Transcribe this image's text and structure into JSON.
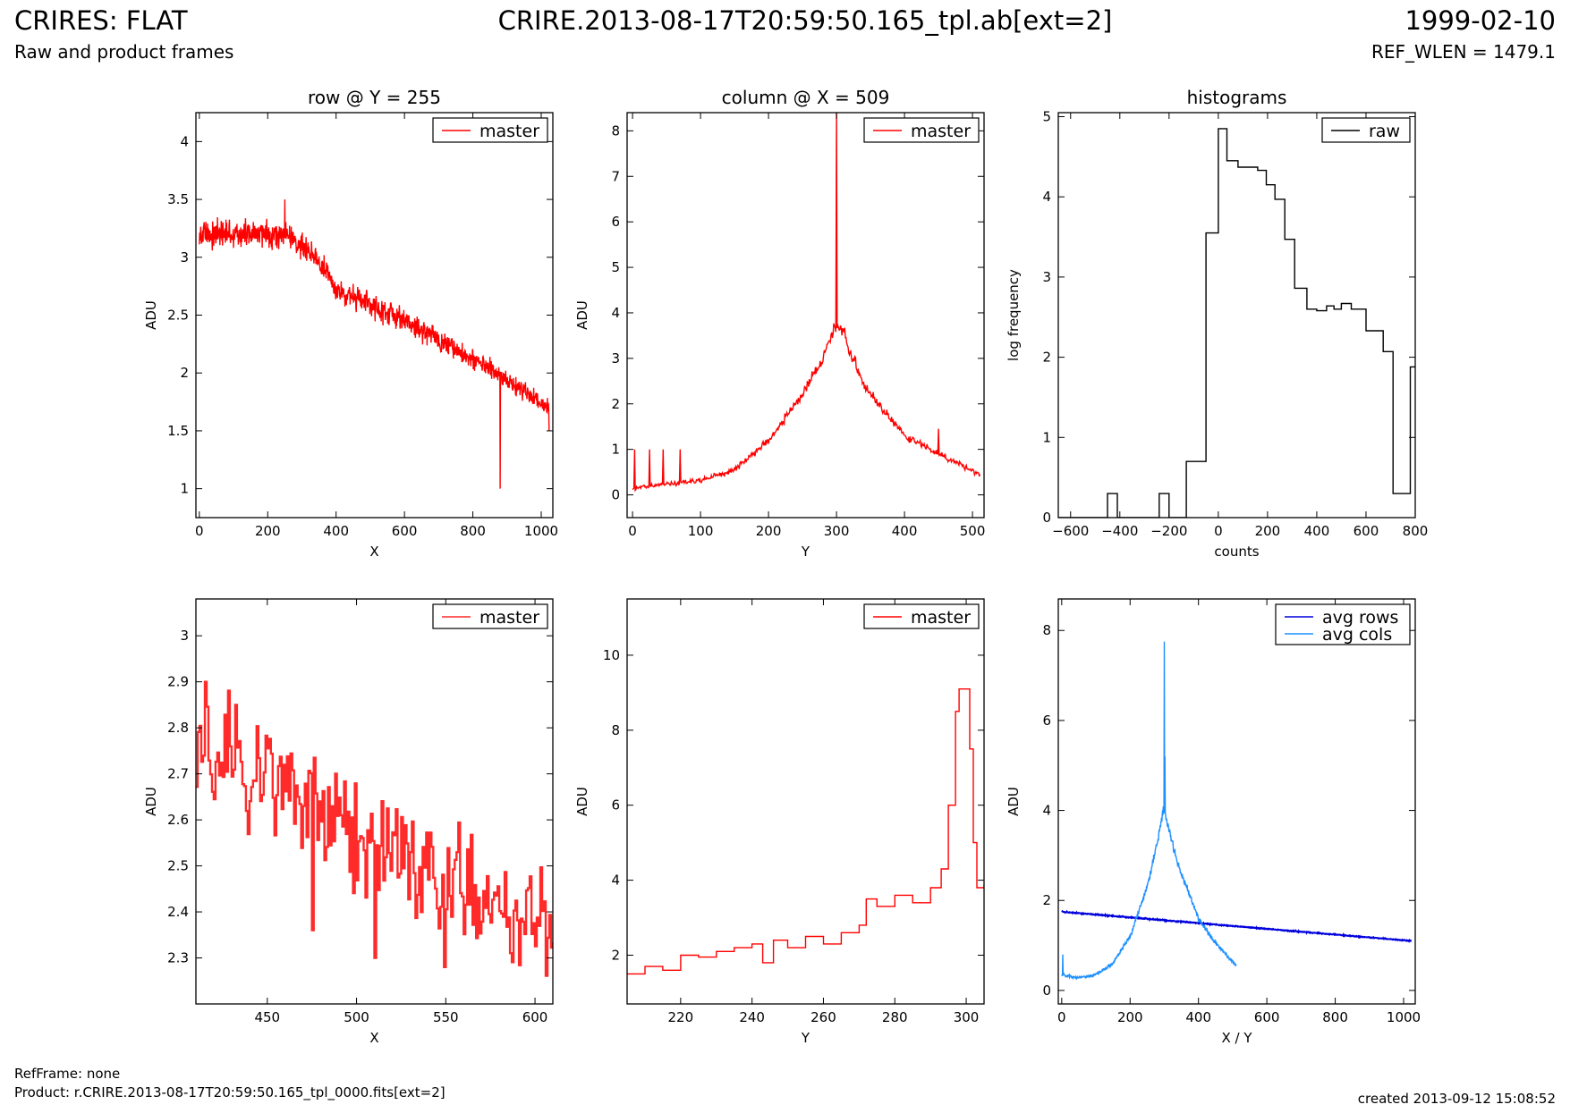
{
  "header": {
    "title": "CRIRES: FLAT",
    "subtitle": "Raw and product frames",
    "center_title": "CRIRE.2013-08-17T20:59:50.165_tpl.ab[ext=2]",
    "date": "1999-02-10",
    "ref_wlen": "REF_WLEN = 1479.1"
  },
  "footer": {
    "refframe": "RefFrame: none",
    "product": "Product: r.CRIRE.2013-08-17T20:59:50.165_tpl_0000.fits[ext=2]",
    "created": "created 2013-09-12 15:08:52"
  },
  "colors": {
    "red": "#ff0000",
    "red_thick": "#ff2a2a",
    "blue": "#0000dd",
    "light_blue": "#1e90ff",
    "black": "#000000"
  },
  "chart_data": [
    {
      "id": "row-y255",
      "type": "line",
      "title": "row @ Y = 255",
      "xlabel": "X",
      "ylabel": "ADU",
      "xlim": [
        -10,
        1034
      ],
      "ylim": [
        0.75,
        4.25
      ],
      "xticks": [
        0,
        200,
        400,
        600,
        800,
        1000
      ],
      "yticks": [
        1.0,
        1.5,
        2.0,
        2.5,
        3.0,
        3.5,
        4.0
      ],
      "legend": "top-right",
      "series": [
        {
          "name": "master",
          "color": "#ff0000",
          "trend": [
            [
              0,
              3.2
            ],
            [
              250,
              3.2
            ],
            [
              330,
              3.05
            ],
            [
              400,
              2.72
            ],
            [
              600,
              2.45
            ],
            [
              800,
              2.12
            ],
            [
              1023,
              1.7
            ]
          ],
          "noise": 0.08,
          "spikes": [
            [
              250,
              3.5
            ],
            [
              880,
              1.0
            ],
            [
              1023,
              1.5
            ]
          ]
        }
      ]
    },
    {
      "id": "column-x509",
      "type": "line",
      "title": "column @ X = 509",
      "xlabel": "Y",
      "ylabel": "ADU",
      "xlim": [
        -8,
        517
      ],
      "ylim": [
        -0.5,
        8.4
      ],
      "xticks": [
        0,
        100,
        200,
        300,
        400,
        500
      ],
      "yticks": [
        0,
        1,
        2,
        3,
        4,
        5,
        6,
        7,
        8
      ],
      "legend": "top-right",
      "series": [
        {
          "name": "master",
          "color": "#ff0000",
          "trend": [
            [
              0,
              0.15
            ],
            [
              100,
              0.32
            ],
            [
              150,
              0.55
            ],
            [
              200,
              1.2
            ],
            [
              250,
              2.2
            ],
            [
              280,
              3.0
            ],
            [
              297,
              3.7
            ],
            [
              310,
              3.6
            ],
            [
              340,
              2.4
            ],
            [
              400,
              1.3
            ],
            [
              450,
              0.9
            ],
            [
              511,
              0.45
            ]
          ],
          "noise": 0.1,
          "spikes": [
            [
              3,
              1.0
            ],
            [
              25,
              1.0
            ],
            [
              45,
              1.0
            ],
            [
              70,
              1.0
            ],
            [
              300,
              8.4
            ],
            [
              450,
              1.45
            ]
          ]
        }
      ]
    },
    {
      "id": "histograms",
      "type": "line",
      "title": "histograms",
      "xlabel": "counts",
      "ylabel": "log frequency",
      "xlim": [
        -650,
        800
      ],
      "ylim": [
        0,
        5.05
      ],
      "xticks": [
        -600,
        -400,
        -200,
        0,
        200,
        400,
        600,
        800
      ],
      "yticks": [
        0,
        1,
        2,
        3,
        4,
        5
      ],
      "legend": "top-right",
      "series": [
        {
          "name": "raw",
          "color": "#000000",
          "step": true,
          "x": [
            -650,
            -450,
            -410,
            -240,
            -200,
            -130,
            -50,
            0,
            35,
            80,
            160,
            195,
            230,
            270,
            310,
            360,
            400,
            440,
            470,
            500,
            540,
            600,
            670,
            710,
            780,
            800
          ],
          "y": [
            0,
            0.3,
            0,
            0.3,
            0,
            0.7,
            3.55,
            4.85,
            4.45,
            4.37,
            4.33,
            4.15,
            3.97,
            3.47,
            2.86,
            2.6,
            2.58,
            2.64,
            2.6,
            2.67,
            2.6,
            2.33,
            2.07,
            0.3,
            1.88,
            1.88
          ]
        }
      ]
    },
    {
      "id": "row-zoom",
      "type": "line",
      "title": "",
      "xlabel": "X",
      "ylabel": "ADU",
      "xlim": [
        410,
        610
      ],
      "ylim": [
        2.2,
        3.08
      ],
      "xticks": [
        450,
        500,
        550,
        600
      ],
      "yticks": [
        2.3,
        2.4,
        2.5,
        2.6,
        2.7,
        2.8,
        2.9,
        3.0
      ],
      "legend": "top-right",
      "series": [
        {
          "name": "master",
          "color": "#ff2a2a",
          "step": true,
          "trend": [
            [
              410,
              2.75
            ],
            [
              450,
              2.68
            ],
            [
              480,
              2.62
            ],
            [
              520,
              2.55
            ],
            [
              560,
              2.44
            ],
            [
              610,
              2.38
            ]
          ],
          "noise": 0.1,
          "spikes": [
            [
              415,
              2.9
            ],
            [
              432,
              2.85
            ],
            [
              475,
              2.36
            ],
            [
              510,
              2.3
            ],
            [
              549,
              2.28
            ]
          ]
        }
      ]
    },
    {
      "id": "column-zoom",
      "type": "line",
      "title": "",
      "xlabel": "Y",
      "ylabel": "ADU",
      "xlim": [
        205,
        305
      ],
      "ylim": [
        0.7,
        11.5
      ],
      "xticks": [
        220,
        240,
        260,
        280,
        300
      ],
      "yticks": [
        2,
        4,
        6,
        8,
        10
      ],
      "legend": "top-right",
      "series": [
        {
          "name": "master",
          "color": "#ff0000",
          "step": true,
          "x": [
            205,
            210,
            215,
            220,
            225,
            230,
            235,
            240,
            243,
            246,
            250,
            255,
            260,
            265,
            270,
            272,
            275,
            280,
            285,
            290,
            293,
            295,
            297,
            298,
            300,
            301,
            302,
            303,
            305
          ],
          "y": [
            1.5,
            1.7,
            1.6,
            2.0,
            1.95,
            2.1,
            2.2,
            2.3,
            1.8,
            2.4,
            2.2,
            2.5,
            2.3,
            2.6,
            2.8,
            3.5,
            3.3,
            3.6,
            3.4,
            3.8,
            4.3,
            6.0,
            8.5,
            9.1,
            9.1,
            7.5,
            5.0,
            3.8,
            3.9
          ]
        }
      ]
    },
    {
      "id": "averages",
      "type": "line",
      "title": "",
      "xlabel": "X / Y",
      "ylabel": "ADU",
      "xlim": [
        -10,
        1034
      ],
      "ylim": [
        -0.3,
        8.7
      ],
      "xticks": [
        0,
        200,
        400,
        600,
        800,
        1000
      ],
      "yticks": [
        0,
        2,
        4,
        6,
        8
      ],
      "legend": "top-right",
      "series": [
        {
          "name": "avg rows",
          "color": "#0000dd",
          "trend": [
            [
              0,
              1.75
            ],
            [
              1023,
              1.1
            ]
          ],
          "noise": 0.012,
          "spikes": []
        },
        {
          "name": "avg cols",
          "color": "#1e90ff",
          "trend": [
            [
              0,
              0.35
            ],
            [
              50,
              0.28
            ],
            [
              100,
              0.35
            ],
            [
              150,
              0.6
            ],
            [
              200,
              1.2
            ],
            [
              250,
              2.3
            ],
            [
              280,
              3.3
            ],
            [
              297,
              4.0
            ],
            [
              310,
              3.7
            ],
            [
              340,
              2.8
            ],
            [
              400,
              1.6
            ],
            [
              450,
              1.05
            ],
            [
              511,
              0.55
            ]
          ],
          "noise": 0.06,
          "spikes": [
            [
              3,
              0.8
            ],
            [
              300,
              7.75
            ],
            [
              302,
              5.2
            ],
            [
              450,
              1.1
            ]
          ]
        }
      ]
    }
  ]
}
